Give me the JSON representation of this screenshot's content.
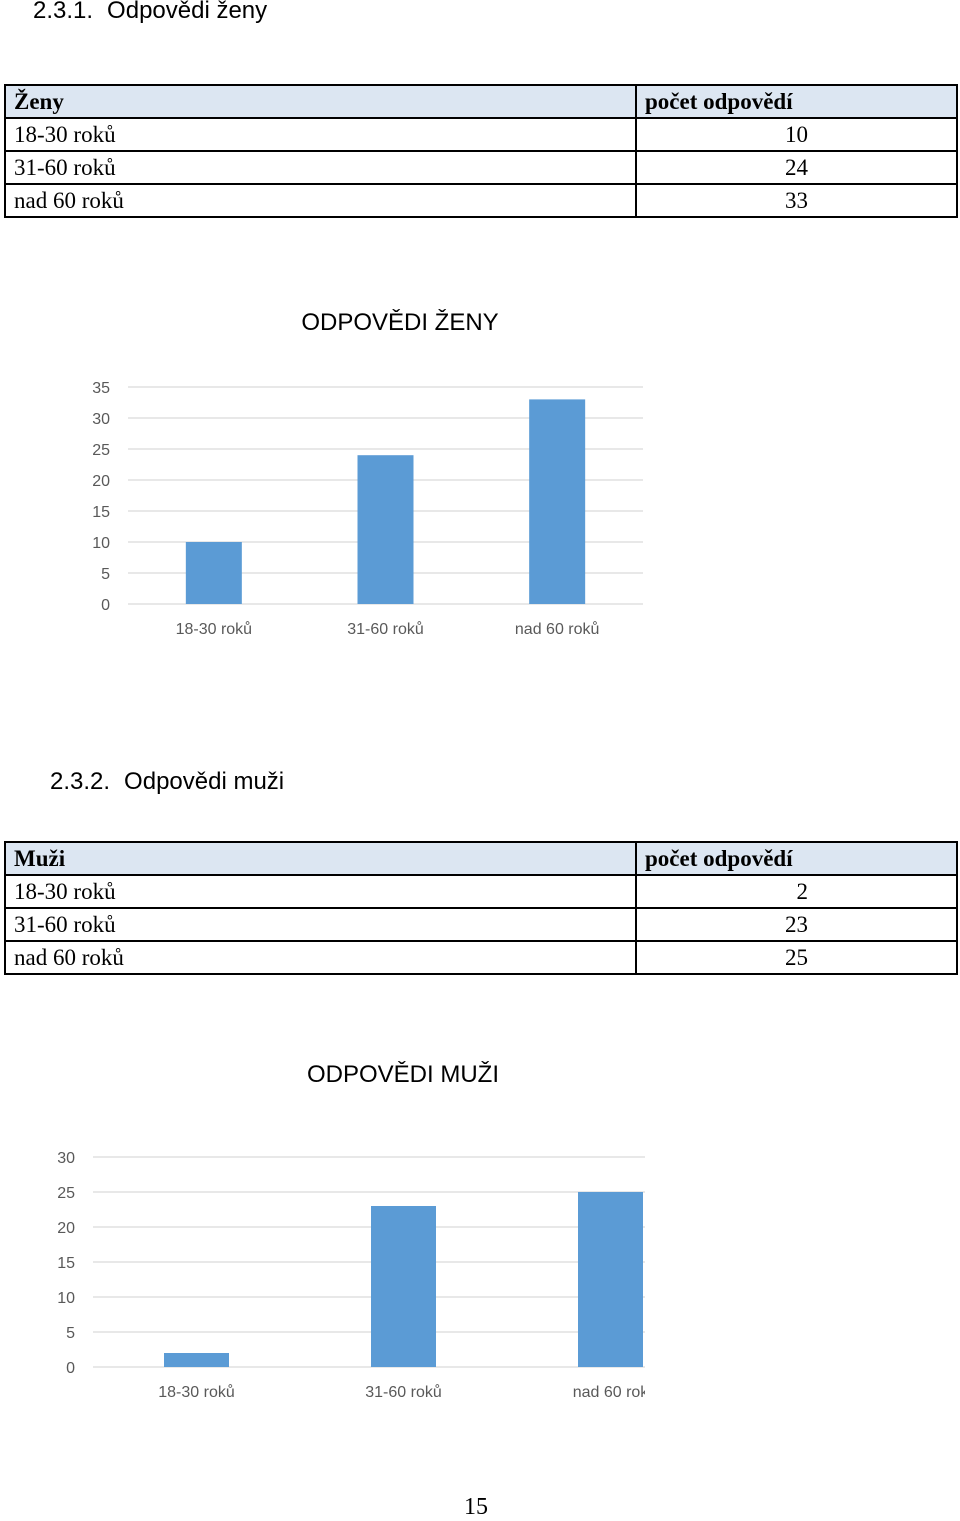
{
  "section1": {
    "number": "2.3.1.",
    "title": "Odpovědi ženy",
    "table": {
      "header": [
        "Ženy",
        "počet odpovědí"
      ],
      "rows": [
        [
          "18-30 roků",
          "10"
        ],
        [
          "31-60 roků",
          "24"
        ],
        [
          "nad 60 roků",
          "33"
        ]
      ]
    }
  },
  "section2": {
    "number": "2.3.2.",
    "title": "Odpovědi muži",
    "table": {
      "header": [
        "Muži",
        "počet odpovědí"
      ],
      "rows": [
        [
          "18-30 roků",
          "2"
        ],
        [
          "31-60 roků",
          "23"
        ],
        [
          "nad 60 roků",
          "25"
        ]
      ]
    }
  },
  "chart_data": [
    {
      "type": "bar",
      "title": "ODPOVĚDI ŽENY",
      "categories": [
        "18-30 roků",
        "31-60 roků",
        "nad 60 roků"
      ],
      "values": [
        10,
        24,
        33
      ],
      "ylim": [
        0,
        35
      ],
      "yticks": [
        0,
        5,
        10,
        15,
        20,
        25,
        30,
        35
      ],
      "grid": true,
      "bar_color": "#5b9bd5",
      "grid_color": "#d9d9d9",
      "text_color": "#595959"
    },
    {
      "type": "bar",
      "title": "ODPOVĚDI MUŽI",
      "categories": [
        "18-30 roků",
        "31-60 roků",
        "nad 60 rok"
      ],
      "values": [
        2,
        23,
        25
      ],
      "ylim": [
        0,
        30
      ],
      "yticks": [
        0,
        5,
        10,
        15,
        20,
        25,
        30
      ],
      "grid": true,
      "bar_color": "#5b9bd5",
      "grid_color": "#d9d9d9",
      "text_color": "#595959"
    }
  ],
  "page_number": "15"
}
